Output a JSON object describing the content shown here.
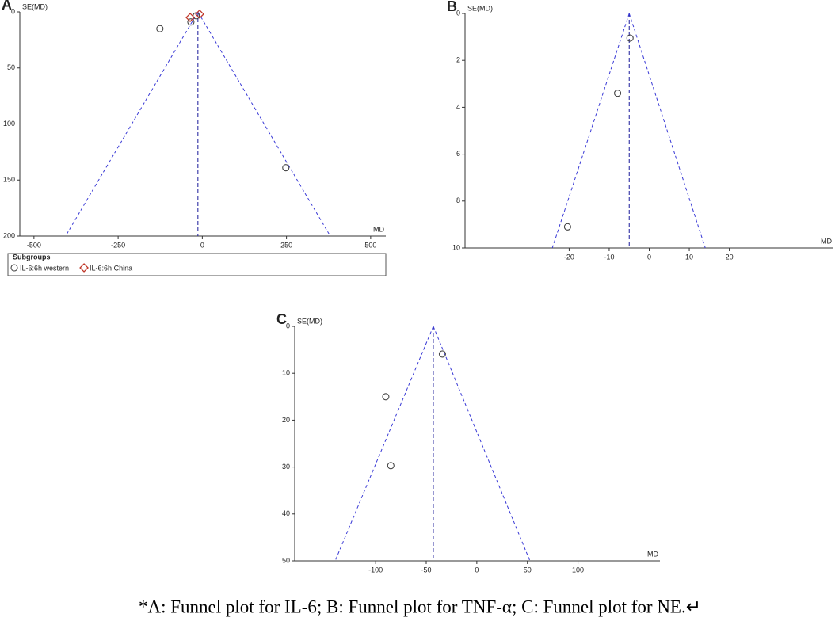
{
  "chart_data": [
    {
      "type": "scatter",
      "panel_label": "A",
      "x_label": "MD",
      "y_label": "SE(MD)",
      "y_inverted": true,
      "xlim": [
        -542,
        545
      ],
      "ylim": [
        0,
        200
      ],
      "xticks": [
        -500,
        -250,
        0,
        250,
        500
      ],
      "yticks": [
        0,
        50,
        100,
        150,
        200
      ],
      "pooled_md": -13,
      "funnel_limits": [
        -406,
        380
      ],
      "funnel_color": "#3a3ad6",
      "legend_title": "Subgroups",
      "series": [
        {
          "name": "IL-6:6h western",
          "marker": "circle",
          "color": "#444444",
          "x": [
            -126,
            -34,
            -18,
            248
          ],
          "values": [
            15,
            9,
            3.5,
            139
          ]
        },
        {
          "name": "IL-6:6h China",
          "marker": "diamond",
          "color": "#c0392b",
          "x": [
            -36,
            -8
          ],
          "values": [
            5,
            2
          ]
        }
      ]
    },
    {
      "type": "scatter",
      "panel_label": "B",
      "x_label": "MD",
      "y_label": "SE(MD)",
      "y_inverted": true,
      "xlim": [
        -46,
        46
      ],
      "ylim": [
        0,
        10
      ],
      "xticks": [
        -20,
        -10,
        0,
        10,
        20
      ],
      "yticks": [
        0,
        2,
        4,
        6,
        8,
        10
      ],
      "pooled_md": -5,
      "funnel_limits": [
        -24.2,
        14
      ],
      "funnel_color": "#3a3ad6",
      "series": [
        {
          "marker": "circle",
          "color": "#444444",
          "x": [
            -4.8,
            -7.9,
            -20.4
          ],
          "values": [
            1.05,
            3.4,
            9.1
          ]
        }
      ]
    },
    {
      "type": "scatter",
      "panel_label": "C",
      "x_label": "MD",
      "y_label": "SE(MD)",
      "y_inverted": true,
      "xlim": [
        -180,
        181
      ],
      "ylim": [
        0,
        50
      ],
      "xticks": [
        -100,
        -50,
        0,
        50,
        100
      ],
      "yticks": [
        0,
        10,
        20,
        30,
        40,
        50
      ],
      "pooled_md": -43,
      "funnel_limits": [
        -140,
        52.5
      ],
      "funnel_color": "#3a3ad6",
      "series": [
        {
          "marker": "circle",
          "color": "#444444",
          "x": [
            -34,
            -90,
            -85
          ],
          "values": [
            5.9,
            15,
            29.7
          ]
        }
      ]
    }
  ],
  "caption": "*A: Funnel plot for IL-6; B: Funnel plot for TNF-α; C: Funnel plot for NE.↵"
}
